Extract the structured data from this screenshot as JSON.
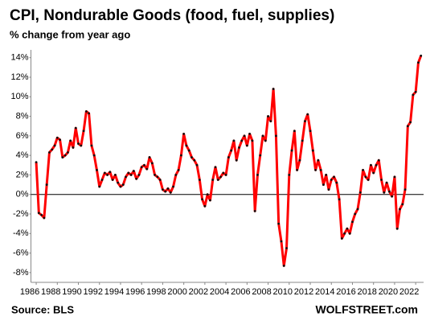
{
  "chart_data": {
    "type": "line",
    "title": "CPI, Nondurable Goods (food, fuel, supplies)",
    "subtitle": "% change from year ago",
    "source": "Source: BLS",
    "watermark": "WOLFSTREET.com",
    "xlim": [
      1985.5,
      2022.75
    ],
    "xticks": [
      1986,
      1988,
      1990,
      1992,
      1994,
      1996,
      1998,
      2000,
      2002,
      2004,
      2006,
      2008,
      2010,
      2012,
      2014,
      2016,
      2018,
      2020,
      2022
    ],
    "ylim": [
      -9,
      14.8
    ],
    "yticks": [
      {
        "value": -8,
        "label": "-8%"
      },
      {
        "value": -6,
        "label": "-6%"
      },
      {
        "value": -4,
        "label": "-4%"
      },
      {
        "value": -2,
        "label": "-2%"
      },
      {
        "value": 0,
        "label": "0%"
      },
      {
        "value": 2,
        "label": "2%"
      },
      {
        "value": 4,
        "label": "4%"
      },
      {
        "value": 6,
        "label": "6%"
      },
      {
        "value": 8,
        "label": "8%"
      },
      {
        "value": 10,
        "label": "10%"
      },
      {
        "value": 12,
        "label": "12%"
      },
      {
        "value": 14,
        "label": "14%"
      }
    ],
    "zero_line": true,
    "series": [
      {
        "color": "#ff0000",
        "marker_color": "#111111",
        "x": [
          1986.0,
          1986.25,
          1986.5,
          1986.75,
          1987.0,
          1987.25,
          1987.5,
          1987.75,
          1988.0,
          1988.25,
          1988.5,
          1988.75,
          1989.0,
          1989.25,
          1989.5,
          1989.75,
          1990.0,
          1990.25,
          1990.5,
          1990.75,
          1991.0,
          1991.25,
          1991.5,
          1991.75,
          1992.0,
          1992.25,
          1992.5,
          1992.75,
          1993.0,
          1993.25,
          1993.5,
          1993.75,
          1994.0,
          1994.25,
          1994.5,
          1994.75,
          1995.0,
          1995.25,
          1995.5,
          1995.75,
          1996.0,
          1996.25,
          1996.5,
          1996.75,
          1997.0,
          1997.25,
          1997.5,
          1997.75,
          1998.0,
          1998.25,
          1998.5,
          1998.75,
          1999.0,
          1999.25,
          1999.5,
          1999.75,
          2000.0,
          2000.25,
          2000.5,
          2000.75,
          2001.0,
          2001.25,
          2001.5,
          2001.75,
          2002.0,
          2002.25,
          2002.5,
          2002.75,
          2003.0,
          2003.25,
          2003.5,
          2003.75,
          2004.0,
          2004.25,
          2004.5,
          2004.75,
          2005.0,
          2005.25,
          2005.5,
          2005.75,
          2006.0,
          2006.25,
          2006.5,
          2006.75,
          2007.0,
          2007.25,
          2007.5,
          2007.75,
          2008.0,
          2008.25,
          2008.5,
          2008.75,
          2009.0,
          2009.25,
          2009.5,
          2009.75,
          2010.0,
          2010.25,
          2010.5,
          2010.75,
          2011.0,
          2011.25,
          2011.5,
          2011.75,
          2012.0,
          2012.25,
          2012.5,
          2012.75,
          2013.0,
          2013.25,
          2013.5,
          2013.75,
          2014.0,
          2014.25,
          2014.5,
          2014.75,
          2015.0,
          2015.25,
          2015.5,
          2015.75,
          2016.0,
          2016.25,
          2016.5,
          2016.75,
          2017.0,
          2017.25,
          2017.5,
          2017.75,
          2018.0,
          2018.25,
          2018.5,
          2018.75,
          2019.0,
          2019.25,
          2019.5,
          2019.75,
          2020.0,
          2020.25,
          2020.5,
          2020.75,
          2021.0,
          2021.25,
          2021.5,
          2021.75,
          2022.0,
          2022.25,
          2022.5
        ],
        "values": [
          3.3,
          -1.9,
          -2.1,
          -2.4,
          1.0,
          4.3,
          4.6,
          5.0,
          5.8,
          5.6,
          3.8,
          4.0,
          4.3,
          5.5,
          4.8,
          6.8,
          5.2,
          5.0,
          6.5,
          8.5,
          8.3,
          5.0,
          4.0,
          2.5,
          0.8,
          1.5,
          2.2,
          2.0,
          2.3,
          1.5,
          2.0,
          1.2,
          0.8,
          1.0,
          1.8,
          2.2,
          2.0,
          2.4,
          1.6,
          2.0,
          2.8,
          3.0,
          2.6,
          3.8,
          3.2,
          2.0,
          1.8,
          1.5,
          0.5,
          0.3,
          0.6,
          0.2,
          0.8,
          2.0,
          2.5,
          4.0,
          6.2,
          5.0,
          4.5,
          3.8,
          3.5,
          3.0,
          1.5,
          -0.5,
          -1.2,
          0.0,
          -0.6,
          1.5,
          2.8,
          1.5,
          1.8,
          2.2,
          2.0,
          3.8,
          4.5,
          5.5,
          3.5,
          4.8,
          5.5,
          6.0,
          5.0,
          6.2,
          5.5,
          -1.7,
          2.0,
          4.0,
          6.0,
          5.5,
          8.0,
          7.5,
          10.8,
          6.0,
          -3.0,
          -4.8,
          -7.3,
          -5.5,
          2.0,
          4.5,
          6.5,
          2.5,
          3.5,
          5.5,
          7.5,
          8.2,
          6.5,
          4.5,
          2.5,
          3.5,
          2.5,
          1.0,
          2.0,
          0.5,
          1.5,
          1.8,
          1.2,
          -0.5,
          -4.5,
          -4.0,
          -3.5,
          -4.0,
          -2.8,
          -2.0,
          -1.5,
          0.2,
          2.5,
          1.8,
          1.5,
          3.0,
          2.2,
          3.0,
          3.5,
          1.5,
          0.2,
          1.2,
          0.3,
          -0.2,
          1.8,
          -3.5,
          -1.5,
          -1.0,
          0.5,
          7.0,
          7.4,
          10.2,
          10.5,
          13.5,
          14.2
        ]
      }
    ]
  }
}
